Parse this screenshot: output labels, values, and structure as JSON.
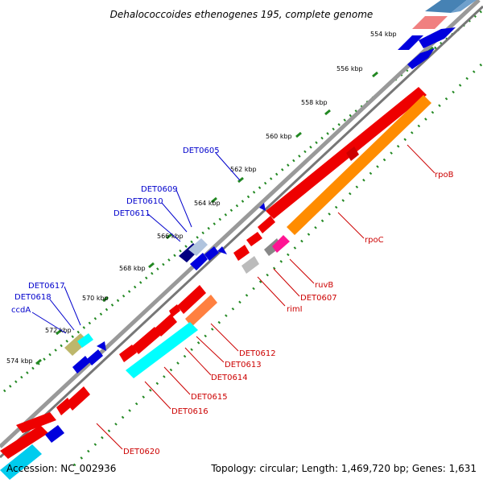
{
  "title": "Dehalococcoides ethenogenes 195, complete genome",
  "accession": "Accession: NC_002936",
  "topology": "Topology: circular; Length: 1,469,720 bp; Genes: 1,631",
  "colors": {
    "backbone": "#888888",
    "ticks": "#228822",
    "blue_label": "#0000cc",
    "red_label": "#cc0000"
  },
  "scale_labels": [
    "554 kbp",
    "556 kbp",
    "558 kbp",
    "560 kbp",
    "562 kbp",
    "564 kbp",
    "566 kbp",
    "568 kbp",
    "570 kbp",
    "572 kbp",
    "574 kbp"
  ],
  "blue_genes": [
    "DET0605",
    "DET0609",
    "DET0610",
    "DET0611",
    "DET0617",
    "DET0618",
    "ccdA"
  ],
  "red_genes": [
    "rpoB",
    "rpoC",
    "ruvB",
    "DET0607",
    "rimI",
    "DET0612",
    "DET0613",
    "DET0614",
    "DET0615",
    "DET0616",
    "DET0620"
  ]
}
